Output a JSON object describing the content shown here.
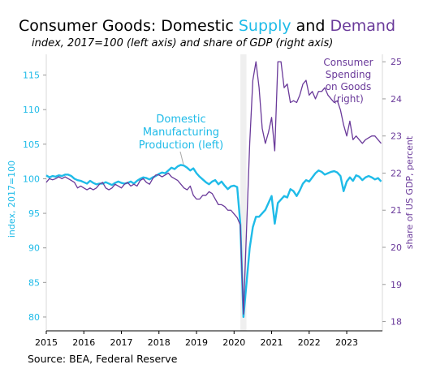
{
  "chart_data": {
    "type": "line",
    "title_parts": [
      {
        "text": "Consumer Goods: Domestic ",
        "color": "#000000"
      },
      {
        "text": "Supply",
        "color": "#1fbbe8"
      },
      {
        "text": " and ",
        "color": "#000000"
      },
      {
        "text": "Demand",
        "color": "#6a3a9a"
      }
    ],
    "subtitle": "index, 2017=100 (left axis) and share of GDP (right axis)",
    "left_axis": {
      "label": "index, 2017=100",
      "range": [
        78,
        118
      ],
      "ticks": [
        80,
        85,
        90,
        95,
        100,
        105,
        110,
        115
      ],
      "color": "#1fbbe8"
    },
    "right_axis": {
      "label": "share of US GDP, percent",
      "range": [
        17.75,
        25.2
      ],
      "ticks": [
        18,
        19,
        20,
        21,
        22,
        23,
        24,
        25
      ],
      "color": "#6a3a9a"
    },
    "x_axis": {
      "range": [
        2015,
        2023.95
      ],
      "ticks": [
        2015,
        2016,
        2017,
        2018,
        2019,
        2020,
        2021,
        2022,
        2023
      ]
    },
    "recession_band": [
      2020.17,
      2020.33
    ],
    "grid": false,
    "series": [
      {
        "name": "Domestic Manufacturing Production (left)",
        "axis": "left",
        "color": "#1fbbe8",
        "values": [
          100.5,
          100.2,
          100.4,
          100.3,
          100.5,
          100.4,
          100.6,
          100.6,
          100.4,
          100.0,
          99.8,
          99.7,
          99.5,
          99.3,
          99.7,
          99.4,
          99.2,
          99.3,
          99.3,
          99.5,
          99.3,
          99.1,
          99.4,
          99.6,
          99.4,
          99.3,
          99.4,
          99.6,
          99.3,
          99.7,
          100.0,
          100.2,
          100.1,
          99.9,
          100.2,
          100.4,
          100.7,
          100.9,
          100.8,
          101.2,
          101.6,
          101.4,
          101.8,
          102.0,
          101.9,
          101.6,
          101.2,
          101.5,
          100.8,
          100.3,
          99.9,
          99.5,
          99.2,
          99.6,
          99.8,
          99.2,
          99.6,
          99.0,
          98.5,
          98.9,
          99.0,
          98.8,
          93.5,
          80.0,
          85.0,
          90.0,
          93.0,
          94.5,
          94.5,
          95.0,
          95.5,
          96.5,
          97.5,
          93.5,
          96.5,
          97.0,
          97.5,
          97.3,
          98.5,
          98.2,
          97.5,
          98.3,
          99.3,
          99.8,
          99.6,
          100.2,
          100.8,
          101.2,
          101.0,
          100.6,
          100.8,
          101.0,
          101.1,
          100.9,
          100.4,
          98.2,
          99.6,
          100.2,
          99.7,
          100.5,
          100.3,
          99.8,
          100.2,
          100.4,
          100.2,
          99.9,
          100.1,
          99.6
        ]
      },
      {
        "name": "Consumer Spending on Goods (right)",
        "axis": "right",
        "color": "#6a3a9a",
        "values": [
          21.75,
          21.85,
          21.82,
          21.85,
          21.9,
          21.85,
          21.9,
          21.85,
          21.8,
          21.75,
          21.6,
          21.65,
          21.6,
          21.55,
          21.6,
          21.55,
          21.6,
          21.7,
          21.75,
          21.6,
          21.55,
          21.6,
          21.7,
          21.65,
          21.6,
          21.7,
          21.75,
          21.65,
          21.7,
          21.65,
          21.8,
          21.85,
          21.75,
          21.7,
          21.85,
          21.95,
          21.95,
          21.9,
          21.95,
          22.0,
          21.9,
          21.85,
          21.8,
          21.7,
          21.6,
          21.55,
          21.65,
          21.4,
          21.3,
          21.3,
          21.4,
          21.4,
          21.5,
          21.45,
          21.3,
          21.15,
          21.15,
          21.1,
          21.0,
          21.0,
          20.9,
          20.8,
          20.6,
          18.2,
          20.5,
          22.8,
          24.5,
          25.0,
          24.3,
          23.2,
          22.8,
          23.1,
          23.5,
          22.6,
          25.0,
          25.0,
          24.3,
          24.4,
          23.9,
          23.95,
          23.9,
          24.1,
          24.4,
          24.5,
          24.1,
          24.2,
          24.0,
          24.2,
          24.2,
          24.3,
          24.1,
          24.0,
          23.9,
          23.95,
          23.7,
          23.3,
          23.0,
          23.4,
          22.9,
          23.0,
          22.9,
          22.8,
          22.9,
          22.95,
          23.0,
          23.0,
          22.9,
          22.8
        ]
      }
    ],
    "annotations": {
      "production_lines": [
        "Domestic",
        "Manufacturing",
        "Production (left)"
      ],
      "spending_lines": [
        "Consumer",
        "Spending",
        "on Goods",
        "(right)"
      ]
    },
    "source": "Source: BEA, Federal Reserve"
  }
}
